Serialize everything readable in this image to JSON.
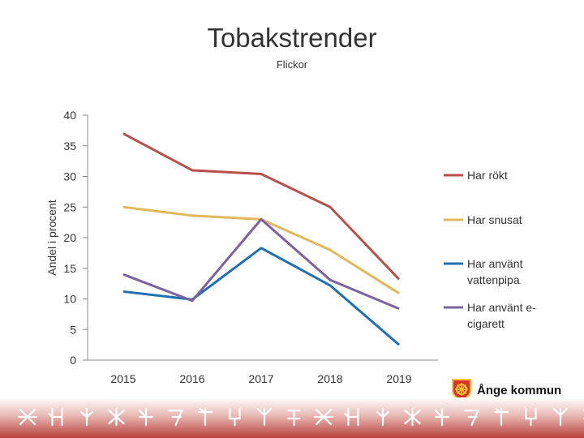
{
  "header": {
    "title": "Tobakstrender",
    "subtitle": "Flickor"
  },
  "logo": {
    "text": "Ånge kommun"
  },
  "chart_data": {
    "type": "line",
    "title": "Tobakstrender",
    "subtitle": "Flickor",
    "ylabel": "Andel i procent",
    "xlabel": "",
    "ylim": [
      0,
      40
    ],
    "yticks": [
      0,
      5,
      10,
      15,
      20,
      25,
      30,
      35,
      40
    ],
    "categories": [
      "2015",
      "2016",
      "2017",
      "2018",
      "2019"
    ],
    "grid": false,
    "legend": "right",
    "series": [
      {
        "name": "Har rökt",
        "color": "#b5504b",
        "values": [
          37,
          31,
          30.4,
          25,
          13.2
        ]
      },
      {
        "name": "Har snusat",
        "color": "#e2b95a",
        "values": [
          25,
          23.6,
          23,
          18,
          10.9
        ]
      },
      {
        "name": "Har använt vattenpipa",
        "color": "#1f6fb2",
        "values": [
          11.2,
          9.9,
          18.3,
          12.2,
          2.5
        ]
      },
      {
        "name": "Har använt e-cigarett",
        "color": "#7d62a0",
        "values": [
          14,
          9.7,
          23,
          13.1,
          8.4
        ]
      }
    ]
  }
}
